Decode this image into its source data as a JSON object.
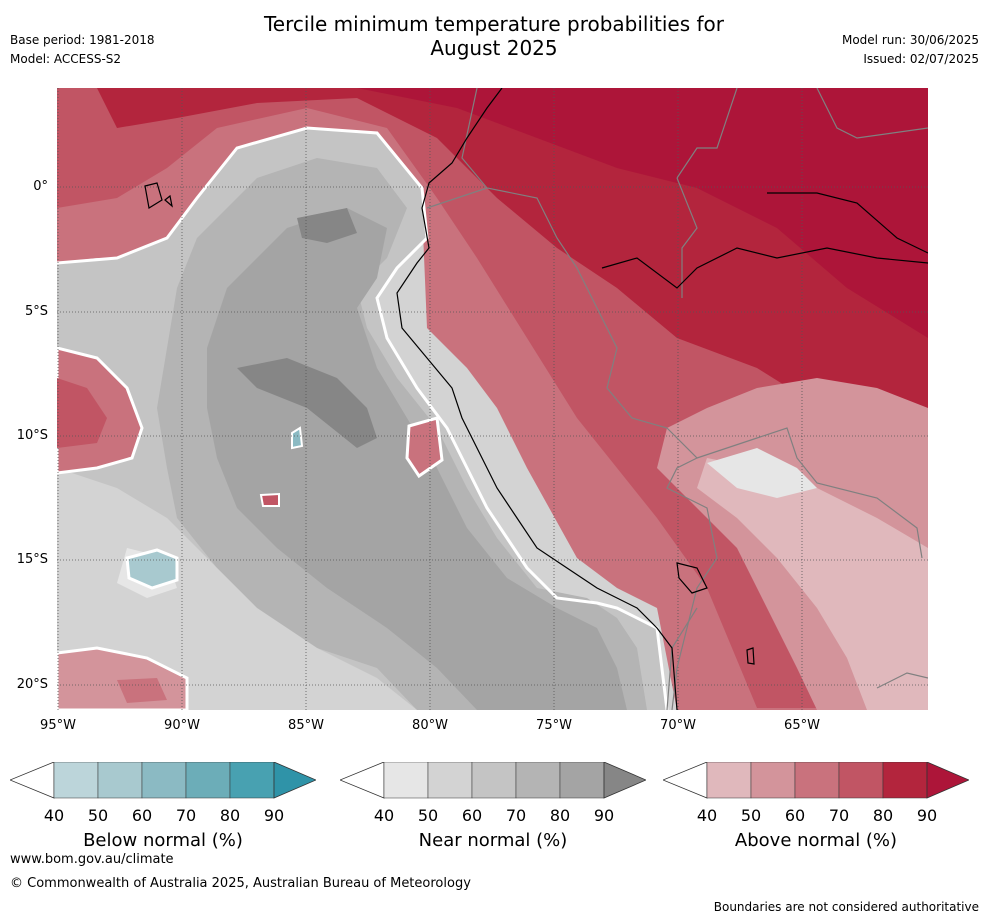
{
  "header": {
    "title_line1": "Tercile minimum temperature probabilities for",
    "title_line2": "August 2025",
    "base_period": "Base period: 1981-2018",
    "model": "Model: ACCESS-S2",
    "model_run": "Model run: 30/06/2025",
    "issued": "Issued: 02/07/2025"
  },
  "map": {
    "lat_labels": [
      "0°",
      "5°S",
      "10°S",
      "15°S",
      "20°S"
    ],
    "lon_labels": [
      "95°W",
      "90°W",
      "85°W",
      "80°W",
      "75°W",
      "70°W",
      "65°W"
    ],
    "colors": {
      "above": [
        "#e0b8bc",
        "#d3949b",
        "#c9727d",
        "#c15564",
        "#b3253d",
        "#ad1539"
      ],
      "near": [
        "#e6e6e6",
        "#d3d3d3",
        "#c4c4c4",
        "#b4b4b4",
        "#a4a4a4",
        "#868686"
      ],
      "below": [
        "#bcd5da",
        "#a8c9cf",
        "#8bbac3",
        "#6cadb8",
        "#48a1b1",
        "#2f93a8"
      ],
      "coast": "#000000",
      "border": "#808080"
    }
  },
  "legends": [
    {
      "title": "Below normal (%)",
      "ticks": [
        "40",
        "50",
        "60",
        "70",
        "80",
        "90"
      ],
      "colors": [
        "#bcd5da",
        "#a8c9cf",
        "#8bbac3",
        "#6cadb8",
        "#48a1b1",
        "#2f93a8"
      ]
    },
    {
      "title": "Near normal (%)",
      "ticks": [
        "40",
        "50",
        "60",
        "70",
        "80",
        "90"
      ],
      "colors": [
        "#e6e6e6",
        "#d3d3d3",
        "#c4c4c4",
        "#b4b4b4",
        "#a4a4a4",
        "#868686"
      ]
    },
    {
      "title": "Above normal (%)",
      "ticks": [
        "40",
        "50",
        "60",
        "70",
        "80",
        "90"
      ],
      "colors": [
        "#e0b8bc",
        "#d3949b",
        "#c9727d",
        "#c15564",
        "#b3253d",
        "#ad1539"
      ]
    }
  ],
  "footer": {
    "website": "www.bom.gov.au/climate",
    "copyright": "© Commonwealth of Australia 2025, Australian Bureau of Meteorology",
    "disclaimer": "Boundaries are not considered authoritative"
  }
}
